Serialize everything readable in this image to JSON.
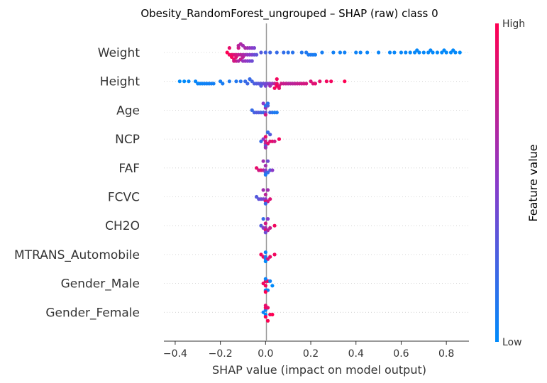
{
  "chart_data": {
    "type": "scatter",
    "subtype": "shap-beeswarm-summary",
    "title": "Obesity_RandomForest_ungrouped – SHAP (raw) class 0",
    "xlabel": "SHAP value (impact on model output)",
    "xlim": [
      -0.45,
      0.9
    ],
    "xticks": [
      -0.4,
      -0.2,
      0.0,
      0.2,
      0.4,
      0.6,
      0.8
    ],
    "xtick_labels": [
      "−0.4",
      "−0.2",
      "0.0",
      "0.2",
      "0.4",
      "0.6",
      "0.8"
    ],
    "zero_line": 0.0,
    "row_gridlines": "dotted",
    "colorbar": {
      "label": "Feature value",
      "high_label": "High",
      "low_label": "Low",
      "low_color": "#008bfb",
      "mid_color": "#8a3bc9",
      "high_color": "#ff0052"
    },
    "features": [
      {
        "name": "Weight",
        "points": [
          [
            -0.17,
            1.0
          ],
          [
            -0.16,
            0.95
          ],
          [
            -0.15,
            0.9
          ],
          [
            -0.14,
            0.85
          ],
          [
            -0.13,
            0.8
          ],
          [
            -0.12,
            0.75
          ],
          [
            -0.11,
            0.7
          ],
          [
            -0.1,
            0.65
          ],
          [
            -0.09,
            0.6
          ],
          [
            -0.08,
            0.55
          ],
          [
            -0.07,
            0.5
          ],
          [
            -0.06,
            0.45
          ],
          [
            -0.05,
            0.4
          ],
          [
            -0.04,
            0.35
          ],
          [
            -0.15,
            0.95
          ],
          [
            -0.13,
            0.85
          ],
          [
            -0.12,
            0.8
          ],
          [
            -0.1,
            0.7
          ],
          [
            -0.09,
            0.65
          ],
          [
            -0.08,
            0.6
          ],
          [
            -0.07,
            0.55
          ],
          [
            -0.11,
            0.75
          ],
          [
            -0.14,
            0.9
          ],
          [
            -0.06,
            0.5
          ],
          [
            -0.05,
            0.45
          ],
          [
            -0.1,
            0.6
          ],
          [
            -0.12,
            0.7
          ],
          [
            -0.13,
            0.75
          ],
          [
            -0.16,
            0.9
          ],
          [
            -0.11,
            0.65
          ],
          [
            -0.09,
            0.55
          ],
          [
            -0.08,
            0.5
          ],
          [
            -0.07,
            0.45
          ],
          [
            -0.06,
            0.4
          ],
          [
            -0.12,
            0.65
          ],
          [
            -0.14,
            0.8
          ],
          [
            -0.1,
            0.55
          ],
          [
            -0.02,
            0.3
          ],
          [
            0.0,
            0.25
          ],
          [
            0.02,
            0.22
          ],
          [
            0.05,
            0.2
          ],
          [
            0.08,
            0.18
          ],
          [
            0.1,
            0.15
          ],
          [
            0.12,
            0.15
          ],
          [
            0.16,
            0.12
          ],
          [
            0.18,
            0.12
          ],
          [
            0.19,
            0.1
          ],
          [
            0.2,
            0.1
          ],
          [
            0.21,
            0.1
          ],
          [
            0.22,
            0.08
          ],
          [
            0.25,
            0.08
          ],
          [
            0.3,
            0.07
          ],
          [
            0.33,
            0.06
          ],
          [
            0.35,
            0.06
          ],
          [
            0.4,
            0.05
          ],
          [
            0.42,
            0.05
          ],
          [
            0.45,
            0.04
          ],
          [
            0.5,
            0.04
          ],
          [
            0.55,
            0.03
          ],
          [
            0.57,
            0.03
          ],
          [
            0.6,
            0.03
          ],
          [
            0.62,
            0.03
          ],
          [
            0.64,
            0.02
          ],
          [
            0.66,
            0.02
          ],
          [
            0.68,
            0.02
          ],
          [
            0.7,
            0.02
          ],
          [
            0.72,
            0.02
          ],
          [
            0.74,
            0.01
          ],
          [
            0.76,
            0.01
          ],
          [
            0.78,
            0.01
          ],
          [
            0.8,
            0.01
          ],
          [
            0.82,
            0.01
          ],
          [
            0.84,
            0.01
          ],
          [
            0.86,
            0.0
          ],
          [
            0.67,
            0.02
          ],
          [
            0.73,
            0.02
          ],
          [
            0.79,
            0.01
          ],
          [
            0.83,
            0.01
          ]
        ]
      },
      {
        "name": "Height",
        "points": [
          [
            -0.38,
            0.0
          ],
          [
            -0.36,
            0.0
          ],
          [
            -0.34,
            0.02
          ],
          [
            -0.31,
            0.03
          ],
          [
            -0.3,
            0.04
          ],
          [
            -0.29,
            0.04
          ],
          [
            -0.28,
            0.05
          ],
          [
            -0.27,
            0.05
          ],
          [
            -0.26,
            0.06
          ],
          [
            -0.25,
            0.06
          ],
          [
            -0.24,
            0.07
          ],
          [
            -0.23,
            0.07
          ],
          [
            -0.2,
            0.08
          ],
          [
            -0.19,
            0.09
          ],
          [
            -0.16,
            0.1
          ],
          [
            -0.13,
            0.12
          ],
          [
            -0.11,
            0.15
          ],
          [
            -0.09,
            0.2
          ],
          [
            -0.08,
            0.22
          ],
          [
            -0.06,
            0.25
          ],
          [
            -0.05,
            0.28
          ],
          [
            -0.04,
            0.3
          ],
          [
            -0.03,
            0.32
          ],
          [
            -0.02,
            0.35
          ],
          [
            -0.01,
            0.38
          ],
          [
            0.0,
            0.4
          ],
          [
            0.01,
            0.45
          ],
          [
            0.02,
            0.5
          ],
          [
            0.03,
            0.55
          ],
          [
            0.04,
            0.7
          ],
          [
            0.05,
            0.9
          ],
          [
            0.05,
            0.95
          ],
          [
            0.05,
            1.0
          ],
          [
            0.06,
            0.85
          ],
          [
            0.07,
            0.8
          ],
          [
            0.08,
            0.75
          ],
          [
            0.09,
            0.75
          ],
          [
            0.1,
            0.7
          ],
          [
            0.11,
            0.7
          ],
          [
            0.12,
            0.7
          ],
          [
            0.13,
            0.72
          ],
          [
            0.14,
            0.75
          ],
          [
            0.15,
            0.75
          ],
          [
            0.16,
            0.8
          ],
          [
            0.17,
            0.8
          ],
          [
            0.18,
            0.82
          ],
          [
            0.2,
            0.85
          ],
          [
            0.21,
            0.85
          ],
          [
            0.22,
            0.88
          ],
          [
            0.24,
            0.9
          ],
          [
            0.27,
            0.95
          ],
          [
            0.29,
            0.95
          ],
          [
            0.35,
            1.0
          ],
          [
            -0.02,
            0.3
          ],
          [
            0.0,
            0.45
          ],
          [
            0.02,
            0.6
          ],
          [
            -0.07,
            0.2
          ],
          [
            0.06,
            0.9
          ],
          [
            0.04,
            0.95
          ]
        ]
      },
      {
        "name": "Age",
        "points": [
          [
            -0.06,
            0.2
          ],
          [
            -0.05,
            0.25
          ],
          [
            -0.04,
            0.3
          ],
          [
            -0.03,
            0.3
          ],
          [
            -0.02,
            0.25
          ],
          [
            -0.01,
            0.2
          ],
          [
            0.0,
            0.4
          ],
          [
            0.0,
            0.6
          ],
          [
            0.0,
            0.8
          ],
          [
            0.0,
            0.1
          ],
          [
            0.01,
            0.3
          ],
          [
            0.02,
            0.2
          ],
          [
            0.03,
            0.15
          ],
          [
            0.04,
            0.1
          ],
          [
            0.05,
            0.1
          ],
          [
            -0.01,
            0.5
          ],
          [
            0.01,
            0.15
          ]
        ]
      },
      {
        "name": "NCP",
        "points": [
          [
            -0.01,
            0.5
          ],
          [
            0.0,
            0.8
          ],
          [
            0.0,
            0.9
          ],
          [
            0.0,
            0.7
          ],
          [
            0.01,
            0.9
          ],
          [
            0.02,
            0.85
          ],
          [
            0.03,
            0.9
          ],
          [
            0.04,
            0.8
          ],
          [
            0.06,
            0.95
          ],
          [
            -0.02,
            0.2
          ],
          [
            0.0,
            0.3
          ],
          [
            0.01,
            0.2
          ],
          [
            0.02,
            0.3
          ],
          [
            0.0,
            0.6
          ]
        ]
      },
      {
        "name": "FAF",
        "points": [
          [
            -0.04,
            0.9
          ],
          [
            -0.03,
            0.8
          ],
          [
            -0.02,
            0.85
          ],
          [
            -0.01,
            0.7
          ],
          [
            0.0,
            0.5
          ],
          [
            0.0,
            0.6
          ],
          [
            0.0,
            0.3
          ],
          [
            0.01,
            0.2
          ],
          [
            0.02,
            0.3
          ],
          [
            0.03,
            0.5
          ],
          [
            0.0,
            0.1
          ],
          [
            0.01,
            0.4
          ],
          [
            -0.01,
            0.6
          ]
        ]
      },
      {
        "name": "FCVC",
        "points": [
          [
            -0.04,
            0.3
          ],
          [
            -0.03,
            0.35
          ],
          [
            -0.02,
            0.4
          ],
          [
            -0.01,
            0.45
          ],
          [
            0.0,
            0.5
          ],
          [
            0.0,
            0.7
          ],
          [
            0.0,
            0.9
          ],
          [
            0.01,
            0.8
          ],
          [
            0.02,
            0.85
          ],
          [
            0.0,
            0.2
          ],
          [
            -0.01,
            0.6
          ],
          [
            0.01,
            0.6
          ]
        ]
      },
      {
        "name": "CH2O",
        "points": [
          [
            -0.02,
            0.3
          ],
          [
            -0.01,
            0.5
          ],
          [
            0.0,
            0.6
          ],
          [
            0.0,
            0.8
          ],
          [
            0.0,
            0.9
          ],
          [
            0.01,
            0.7
          ],
          [
            0.02,
            0.75
          ],
          [
            0.04,
            0.95
          ],
          [
            0.0,
            0.4
          ],
          [
            -0.01,
            0.2
          ],
          [
            0.01,
            0.5
          ]
        ]
      },
      {
        "name": "MTRANS_Automobile",
        "points": [
          [
            -0.02,
            0.95
          ],
          [
            -0.01,
            0.9
          ],
          [
            0.0,
            0.1
          ],
          [
            0.0,
            0.05
          ],
          [
            0.0,
            0.15
          ],
          [
            0.01,
            0.8
          ],
          [
            0.02,
            0.9
          ],
          [
            0.04,
            0.95
          ],
          [
            0.0,
            0.0
          ]
        ]
      },
      {
        "name": "Gender_Male",
        "points": [
          [
            -0.01,
            0.95
          ],
          [
            0.0,
            0.95
          ],
          [
            0.0,
            0.9
          ],
          [
            0.01,
            0.95
          ],
          [
            0.0,
            0.05
          ],
          [
            0.0,
            0.0
          ],
          [
            0.01,
            0.05
          ],
          [
            0.02,
            0.05
          ],
          [
            0.03,
            0.0
          ],
          [
            0.0,
            1.0
          ]
        ]
      },
      {
        "name": "Gender_Female",
        "points": [
          [
            -0.01,
            0.05
          ],
          [
            0.0,
            0.0
          ],
          [
            0.0,
            0.05
          ],
          [
            0.0,
            1.0
          ],
          [
            0.0,
            0.95
          ],
          [
            0.01,
            0.9
          ],
          [
            0.02,
            0.95
          ],
          [
            0.03,
            1.0
          ],
          [
            0.0,
            0.9
          ],
          [
            0.01,
            1.0
          ]
        ]
      }
    ]
  }
}
